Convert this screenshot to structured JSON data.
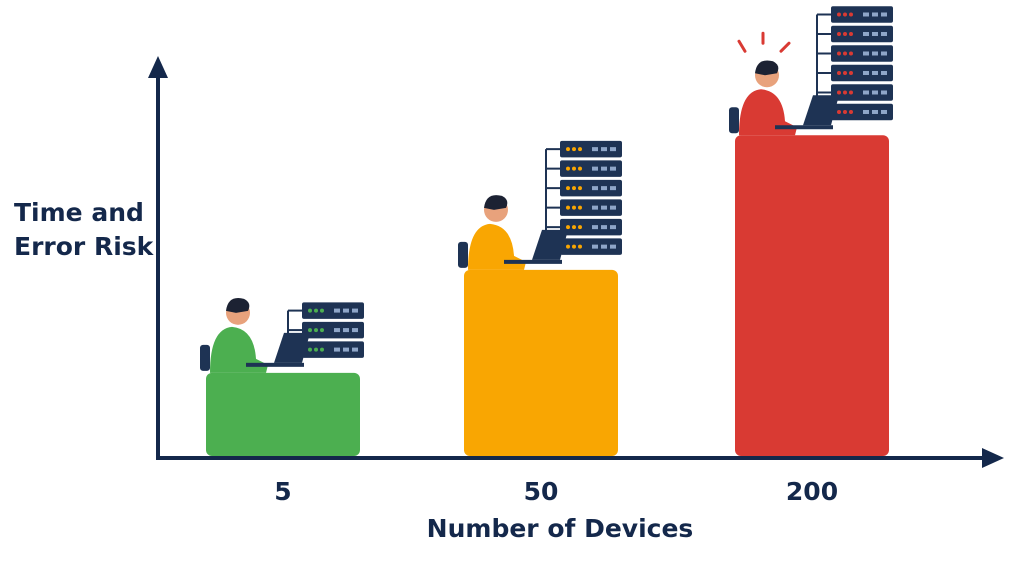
{
  "chart_data": {
    "type": "bar",
    "x_label": "Number of Devices",
    "y_label": "Time and Error Risk",
    "categories": [
      "5",
      "50",
      "200"
    ],
    "values": [
      21,
      47,
      81
    ],
    "colors": [
      "#4caf50",
      "#f9a602",
      "#d93a33"
    ],
    "ylim": [
      0,
      100
    ]
  }
}
